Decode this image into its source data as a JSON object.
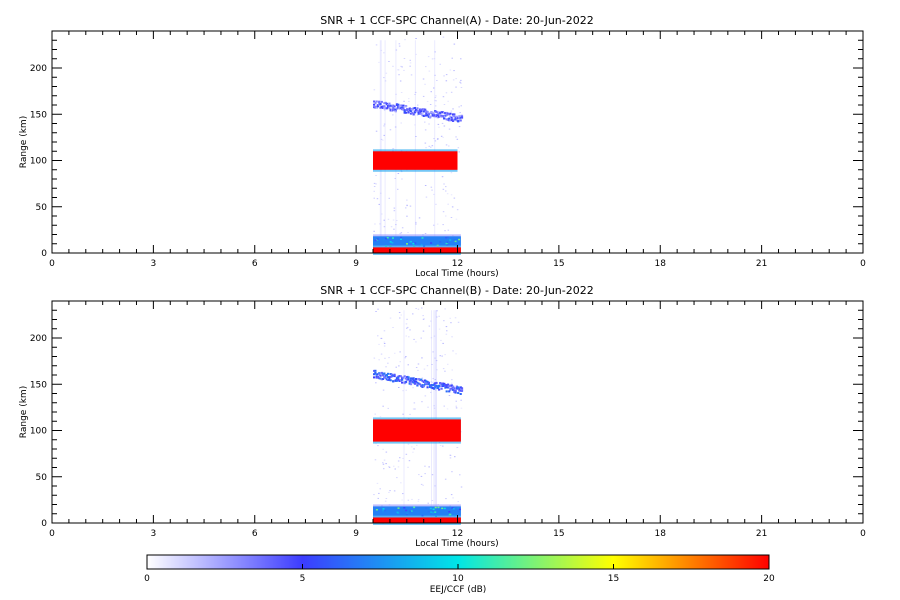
{
  "chart_data": [
    {
      "type": "heatmap",
      "title": "SNR + 1 CCF-SPC Channel(A) - Date: 20-Jun-2022",
      "xlabel": "Local Time (hours)",
      "ylabel": "Range (km)",
      "xlim": [
        0,
        24
      ],
      "ylim": [
        0,
        240
      ],
      "xticks": [
        "0",
        "3",
        "6",
        "9",
        "12",
        "15",
        "18",
        "21",
        "0"
      ],
      "yticks": [
        "0",
        "50",
        "100",
        "150",
        "200"
      ],
      "observation_window_hours": [
        9.5,
        12.1
      ],
      "echo_layers": [
        {
          "feature": "strong E-region echo",
          "time": [
            9.5,
            12.0
          ],
          "range_km": [
            90,
            110
          ],
          "level_db": 20
        },
        {
          "feature": "upper layer",
          "time": [
            9.5,
            12.1
          ],
          "range_km_start": 162,
          "range_km_end": 146,
          "level_db": 4
        },
        {
          "feature": "near-field band",
          "time": [
            9.5,
            12.1
          ],
          "range_km": [
            8,
            18
          ],
          "level_db": 7
        },
        {
          "feature": "ground clutter",
          "time": [
            9.5,
            12.1
          ],
          "range_km": [
            0,
            6
          ],
          "level_db": 20
        }
      ]
    },
    {
      "type": "heatmap",
      "title": "SNR + 1 CCF-SPC Channel(B) - Date: 20-Jun-2022",
      "xlabel": "Local Time (hours)",
      "ylabel": "Range (km)",
      "xlim": [
        0,
        24
      ],
      "ylim": [
        0,
        240
      ],
      "xticks": [
        "0",
        "3",
        "6",
        "9",
        "12",
        "15",
        "18",
        "21",
        "0"
      ],
      "yticks": [
        "0",
        "50",
        "100",
        "150",
        "200"
      ],
      "observation_window_hours": [
        9.5,
        12.1
      ],
      "echo_layers": [
        {
          "feature": "strong E-region echo",
          "time": [
            9.5,
            12.1
          ],
          "range_km": [
            88,
            112
          ],
          "level_db": 20
        },
        {
          "feature": "upper layer",
          "time": [
            9.5,
            12.1
          ],
          "range_km_start": 162,
          "range_km_end": 144,
          "level_db": 5
        },
        {
          "feature": "near-field band",
          "time": [
            9.5,
            12.1
          ],
          "range_km": [
            8,
            18
          ],
          "level_db": 7
        },
        {
          "feature": "ground clutter",
          "time": [
            9.5,
            12.1
          ],
          "range_km": [
            0,
            6
          ],
          "level_db": 20
        }
      ]
    }
  ],
  "colorbar": {
    "label": "EEJ/CCF (dB)",
    "range": [
      0,
      20
    ],
    "ticks": [
      "0",
      "5",
      "10",
      "15",
      "20"
    ],
    "colors": [
      "#ffffff",
      "#3c3cff",
      "#00e6e6",
      "#ffff00",
      "#ff0000"
    ]
  }
}
